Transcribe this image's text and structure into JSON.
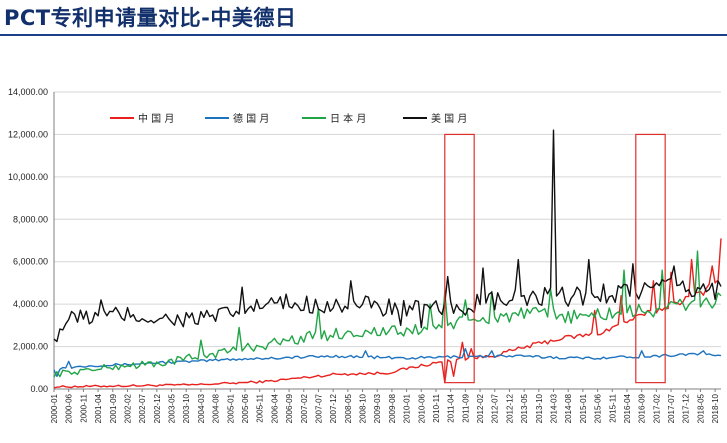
{
  "page": {
    "title": "PCT专利申请量对比-中美德日"
  },
  "chart_data": {
    "type": "line",
    "ylim": [
      0,
      14000
    ],
    "y_ticks": [
      "0.00",
      "2,000.00",
      "4,000.00",
      "6,000.00",
      "8,000.00",
      "10,000.00",
      "12,000.00",
      "14,000.00"
    ],
    "x_ticks": [
      "2000-01",
      "2000-06",
      "2000-11",
      "2001-04",
      "2001-09",
      "2002-02",
      "2002-07",
      "2002-12",
      "2003-05",
      "2003-10",
      "2004-03",
      "2004-08",
      "2005-01",
      "2005-06",
      "2005-11",
      "2006-04",
      "2006-09",
      "2007-02",
      "2007-07",
      "2007-12",
      "2008-05",
      "2008-10",
      "2009-03",
      "2009-08",
      "2010-01",
      "2010-06",
      "2010-11",
      "2011-04",
      "2011-09",
      "2012-02",
      "2012-07",
      "2012-12",
      "2013-05",
      "2013-10",
      "2014-03",
      "2014-08",
      "2015-01",
      "2015-06",
      "2015-11",
      "2016-04",
      "2016-09",
      "2017-02",
      "2017-07",
      "2017-12",
      "2018-05",
      "2018-10"
    ],
    "x_range": [
      "2000-01",
      "2018-12"
    ],
    "legend": {
      "position": "top"
    },
    "grid": {
      "y": true,
      "x": false
    },
    "highlights": [
      {
        "from": "2011-02",
        "to": "2011-12",
        "color": "#e0302d"
      },
      {
        "from": "2016-07",
        "to": "2017-05",
        "color": "#e0302d"
      }
    ],
    "series": [
      {
        "name": "中国月",
        "color": "#e8211d",
        "anchors": [
          [
            "2000-01",
            100
          ],
          [
            "2002-01",
            150
          ],
          [
            "2004-01",
            200
          ],
          [
            "2006-01",
            350
          ],
          [
            "2008-01",
            700
          ],
          [
            "2009-06",
            750
          ],
          [
            "2010-06",
            1100
          ],
          [
            "2011-06",
            1400
          ],
          [
            "2012-06",
            1550
          ],
          [
            "2013-06",
            2000
          ],
          [
            "2014-06",
            2400
          ],
          [
            "2015-06",
            2600
          ],
          [
            "2016-06",
            3300
          ],
          [
            "2017-06",
            3900
          ],
          [
            "2018-06",
            4600
          ],
          [
            "2018-11",
            5300
          ]
        ],
        "spikes": [
          [
            "2011-02",
            300
          ],
          [
            "2011-05",
            600
          ],
          [
            "2011-08",
            2200
          ],
          [
            "2011-11",
            1900
          ],
          [
            "2015-05",
            3700
          ],
          [
            "2016-02",
            4400
          ],
          [
            "2017-01",
            5100
          ],
          [
            "2017-07",
            5500
          ],
          [
            "2018-02",
            6100
          ],
          [
            "2018-09",
            5800
          ],
          [
            "2018-12",
            7100
          ]
        ]
      },
      {
        "name": "德国月",
        "color": "#1e73be",
        "anchors": [
          [
            "2000-01",
            950
          ],
          [
            "2001-01",
            1100
          ],
          [
            "2002-01",
            1150
          ],
          [
            "2003-01",
            1250
          ],
          [
            "2004-01",
            1300
          ],
          [
            "2005-01",
            1400
          ],
          [
            "2006-01",
            1450
          ],
          [
            "2007-01",
            1500
          ],
          [
            "2008-01",
            1550
          ],
          [
            "2009-01",
            1500
          ],
          [
            "2010-01",
            1450
          ],
          [
            "2011-01",
            1500
          ],
          [
            "2012-01",
            1550
          ],
          [
            "2013-01",
            1550
          ],
          [
            "2014-01",
            1500
          ],
          [
            "2015-01",
            1450
          ],
          [
            "2016-01",
            1500
          ],
          [
            "2017-01",
            1550
          ],
          [
            "2018-01",
            1650
          ],
          [
            "2018-12",
            1600
          ]
        ],
        "spikes": [
          [
            "2000-02",
            600
          ],
          [
            "2000-06",
            1300
          ],
          [
            "2008-11",
            1800
          ],
          [
            "2011-09",
            1900
          ],
          [
            "2012-06",
            1800
          ],
          [
            "2016-09",
            1800
          ],
          [
            "2018-06",
            1800
          ]
        ]
      },
      {
        "name": "日本月",
        "color": "#21a546",
        "anchors": [
          [
            "2000-01",
            700
          ],
          [
            "2001-01",
            900
          ],
          [
            "2002-01",
            1100
          ],
          [
            "2003-01",
            1200
          ],
          [
            "2004-01",
            1500
          ],
          [
            "2005-01",
            1800
          ],
          [
            "2006-01",
            2100
          ],
          [
            "2007-01",
            2400
          ],
          [
            "2008-01",
            2600
          ],
          [
            "2009-01",
            2700
          ],
          [
            "2010-01",
            2700
          ],
          [
            "2011-01",
            3000
          ],
          [
            "2012-01",
            3200
          ],
          [
            "2013-01",
            3500
          ],
          [
            "2014-01",
            3500
          ],
          [
            "2015-01",
            3400
          ],
          [
            "2016-01",
            3600
          ],
          [
            "2017-01",
            3700
          ],
          [
            "2018-01",
            4000
          ],
          [
            "2018-12",
            4200
          ]
        ],
        "spikes": [
          [
            "2004-03",
            2300
          ],
          [
            "2005-04",
            2900
          ],
          [
            "2007-07",
            3800
          ],
          [
            "2010-09",
            4000
          ],
          [
            "2011-02",
            4600
          ],
          [
            "2011-09",
            4200
          ],
          [
            "2012-06",
            4600
          ],
          [
            "2014-02",
            4700
          ],
          [
            "2016-03",
            5600
          ],
          [
            "2017-04",
            5600
          ],
          [
            "2018-04",
            6500
          ],
          [
            "2018-12",
            4400
          ]
        ]
      },
      {
        "name": "美国月",
        "color": "#111111",
        "anchors": [
          [
            "2000-01",
            2400
          ],
          [
            "2000-06",
            3300
          ],
          [
            "2001-01",
            3400
          ],
          [
            "2002-01",
            3500
          ],
          [
            "2003-01",
            3300
          ],
          [
            "2004-01",
            3300
          ],
          [
            "2005-01",
            3500
          ],
          [
            "2006-01",
            4000
          ],
          [
            "2007-01",
            4000
          ],
          [
            "2008-01",
            4000
          ],
          [
            "2009-01",
            3900
          ],
          [
            "2010-01",
            3800
          ],
          [
            "2011-01",
            3700
          ],
          [
            "2012-01",
            4000
          ],
          [
            "2013-01",
            4200
          ],
          [
            "2014-01",
            4300
          ],
          [
            "2015-01",
            4400
          ],
          [
            "2016-01",
            4600
          ],
          [
            "2017-01",
            4700
          ],
          [
            "2018-01",
            4700
          ],
          [
            "2018-12",
            4700
          ]
        ],
        "spikes": [
          [
            "2000-01",
            2350
          ],
          [
            "2001-05",
            4200
          ],
          [
            "2005-05",
            4800
          ],
          [
            "2008-06",
            5100
          ],
          [
            "2009-11",
            3000
          ],
          [
            "2010-06",
            2900
          ],
          [
            "2011-03",
            5300
          ],
          [
            "2012-03",
            5700
          ],
          [
            "2013-03",
            6100
          ],
          [
            "2014-03",
            12200
          ],
          [
            "2015-03",
            6100
          ],
          [
            "2016-06",
            5900
          ],
          [
            "2017-08",
            5800
          ]
        ]
      }
    ]
  }
}
